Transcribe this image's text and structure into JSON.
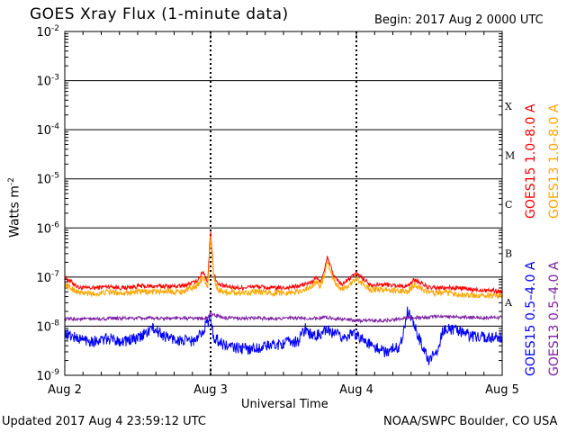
{
  "header": {
    "title": "GOES Xray Flux (1-minute data)",
    "begin": "Begin:  2017 Aug 2 0000 UTC"
  },
  "footer": {
    "updated": "Updated 2017 Aug  4 23:59:12 UTC",
    "credit": "NOAA/SWPC Boulder, CO USA"
  },
  "chart_data": {
    "type": "line",
    "title": "GOES Xray Flux (1-minute data)",
    "xlabel": "Universal Time",
    "ylabel": "Watts m",
    "ylabel_superscript": "-2",
    "y_scale": "log",
    "ylim": [
      1e-09,
      0.01
    ],
    "xlim": [
      "Aug 2",
      "Aug 5"
    ],
    "x_ticks": [
      "Aug 2",
      "Aug 3",
      "Aug 4",
      "Aug 5"
    ],
    "y_ticks": [
      {
        "base": "10",
        "exp": "-9"
      },
      {
        "base": "10",
        "exp": "-8"
      },
      {
        "base": "10",
        "exp": "-7"
      },
      {
        "base": "10",
        "exp": "-6"
      },
      {
        "base": "10",
        "exp": "-5"
      },
      {
        "base": "10",
        "exp": "-4"
      },
      {
        "base": "10",
        "exp": "-3"
      },
      {
        "base": "10",
        "exp": "-2"
      }
    ],
    "flare_classes": [
      {
        "label": "A",
        "min": 1e-08
      },
      {
        "label": "B",
        "min": 1e-07
      },
      {
        "label": "C",
        "min": 1e-06
      },
      {
        "label": "M",
        "min": 1e-05
      },
      {
        "label": "X",
        "min": 0.0001
      }
    ],
    "grid": true,
    "legend": "right",
    "series": [
      {
        "name": "GOES15 1.0–8.0 A",
        "color": "#ff0000",
        "x_days": [
          0,
          0.1,
          0.2,
          0.3,
          0.4,
          0.5,
          0.6,
          0.7,
          0.8,
          0.9,
          0.95,
          0.98,
          1.0,
          1.02,
          1.05,
          1.1,
          1.2,
          1.3,
          1.4,
          1.5,
          1.6,
          1.7,
          1.72,
          1.75,
          1.78,
          1.8,
          1.85,
          1.9,
          2.0,
          2.1,
          2.2,
          2.35,
          2.4,
          2.5,
          2.6,
          2.7,
          2.8,
          2.9,
          3.0
        ],
        "y": [
          1e-07,
          6e-08,
          6e-08,
          6.5e-08,
          6e-08,
          6.5e-08,
          6.5e-08,
          6.5e-08,
          6.5e-08,
          8e-08,
          1.3e-07,
          8e-08,
          9e-07,
          1.2e-07,
          7e-08,
          6.5e-08,
          6e-08,
          6.5e-08,
          6e-08,
          6e-08,
          6.5e-08,
          8e-08,
          1e-07,
          8e-08,
          1.3e-07,
          2.5e-07,
          1e-07,
          7e-08,
          1.2e-07,
          7e-08,
          7e-08,
          6.5e-08,
          9e-08,
          6e-08,
          6e-08,
          6e-08,
          5.5e-08,
          5.5e-08,
          5e-08
        ]
      },
      {
        "name": "GOES13 1.0–8.0 A",
        "color": "#ffa500",
        "x_days": [
          0,
          0.1,
          0.2,
          0.3,
          0.4,
          0.5,
          0.6,
          0.7,
          0.8,
          0.9,
          0.95,
          0.98,
          1.0,
          1.02,
          1.05,
          1.1,
          1.2,
          1.3,
          1.4,
          1.5,
          1.6,
          1.7,
          1.72,
          1.75,
          1.78,
          1.8,
          1.85,
          1.9,
          2.0,
          2.1,
          2.2,
          2.35,
          2.4,
          2.5,
          2.6,
          2.7,
          2.8,
          2.9,
          3.0
        ],
        "y": [
          7e-08,
          4.8e-08,
          4.5e-08,
          5e-08,
          4.8e-08,
          5e-08,
          5e-08,
          5.2e-08,
          5e-08,
          6.5e-08,
          1e-07,
          6e-08,
          7e-07,
          1e-07,
          5.5e-08,
          5e-08,
          4.8e-08,
          5e-08,
          4.8e-08,
          4.8e-08,
          5e-08,
          6.5e-08,
          8e-08,
          6.5e-08,
          1e-07,
          2e-07,
          8e-08,
          5.5e-08,
          9e-08,
          5.5e-08,
          5.5e-08,
          5e-08,
          7e-08,
          4.8e-08,
          4.8e-08,
          4.5e-08,
          4.2e-08,
          4.2e-08,
          4e-08
        ]
      },
      {
        "name": "GOES15 0.5–4.0 A",
        "color": "#0000ff",
        "x_days": [
          0,
          0.1,
          0.2,
          0.3,
          0.4,
          0.5,
          0.6,
          0.7,
          0.8,
          0.9,
          1.0,
          1.02,
          1.1,
          1.2,
          1.3,
          1.4,
          1.5,
          1.6,
          1.65,
          1.7,
          1.8,
          1.9,
          2.0,
          2.1,
          2.2,
          2.3,
          2.35,
          2.38,
          2.45,
          2.5,
          2.55,
          2.6,
          2.7,
          2.8,
          2.9,
          3.0
        ],
        "y": [
          7e-09,
          5.5e-09,
          5e-09,
          5.5e-09,
          5e-09,
          5.5e-09,
          9e-09,
          6e-09,
          5e-09,
          5e-09,
          1.5e-08,
          6e-09,
          4e-09,
          3.5e-09,
          3.5e-09,
          4e-09,
          4.5e-09,
          5e-09,
          9e-09,
          6e-09,
          8e-09,
          6e-09,
          7e-09,
          4e-09,
          3e-09,
          4e-09,
          2e-08,
          1.4e-08,
          4e-09,
          2e-09,
          3e-09,
          9e-09,
          8e-09,
          6e-09,
          6e-09,
          6e-09
        ]
      },
      {
        "name": "GOES13 0.5–4.0 A",
        "color": "#7b1fa2",
        "x_days": [
          0,
          0.2,
          0.4,
          0.6,
          0.8,
          0.98,
          1.0,
          1.1,
          1.3,
          1.5,
          1.7,
          1.8,
          1.9,
          2.0,
          2.2,
          2.35,
          2.45,
          2.6,
          2.8,
          3.0
        ],
        "y": [
          1.4e-08,
          1.4e-08,
          1.45e-08,
          1.45e-08,
          1.45e-08,
          1.45e-08,
          1.8e-08,
          1.45e-08,
          1.45e-08,
          1.45e-08,
          1.45e-08,
          1.5e-08,
          1.4e-08,
          1.3e-08,
          1.3e-08,
          1.5e-08,
          1.5e-08,
          1.6e-08,
          1.5e-08,
          1.5e-08
        ]
      }
    ]
  }
}
